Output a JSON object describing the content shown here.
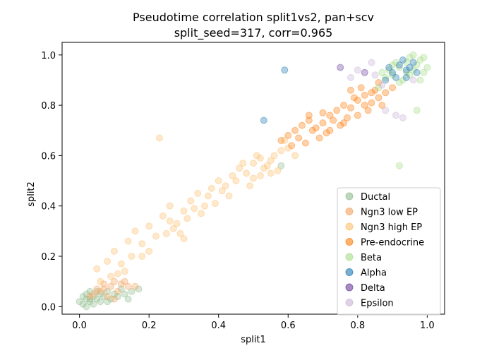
{
  "chart_data": {
    "type": "scatter",
    "title_line1": "Pseudotime correlation split1vs2, pan+scv",
    "title_line2": "split_seed=317, corr=0.965",
    "xlabel": "split1",
    "ylabel": "split2",
    "xlim": [
      -0.05,
      1.05
    ],
    "ylim": [
      -0.03,
      1.05
    ],
    "xticks": [
      0.0,
      0.2,
      0.4,
      0.6,
      0.8,
      1.0
    ],
    "yticks": [
      0.0,
      0.2,
      0.4,
      0.6,
      0.8,
      1.0
    ],
    "xtick_labels": [
      "0.0",
      "0.2",
      "0.4",
      "0.6",
      "0.8",
      "1.0"
    ],
    "ytick_labels": [
      "0.0",
      "0.2",
      "0.4",
      "0.6",
      "0.8",
      "1.0"
    ],
    "grid": false,
    "legend_position": "lower right",
    "series": [
      {
        "name": "Ductal",
        "color": "#8fbc8f",
        "points": [
          [
            0.01,
            0.01
          ],
          [
            0.02,
            0.03
          ],
          [
            0.03,
            0.02
          ],
          [
            0.04,
            0.04
          ],
          [
            0.05,
            0.03
          ],
          [
            0.06,
            0.05
          ],
          [
            0.02,
            0.05
          ],
          [
            0.03,
            0.06
          ],
          [
            0.07,
            0.04
          ],
          [
            0.08,
            0.06
          ],
          [
            0.1,
            0.05
          ],
          [
            0.12,
            0.07
          ],
          [
            0.04,
            0.01
          ],
          [
            0.0,
            0.02
          ],
          [
            0.01,
            0.04
          ],
          [
            0.05,
            0.06
          ],
          [
            0.09,
            0.03
          ],
          [
            0.11,
            0.04
          ],
          [
            0.06,
            0.02
          ],
          [
            0.13,
            0.05
          ],
          [
            0.15,
            0.06
          ],
          [
            0.17,
            0.07
          ],
          [
            0.02,
            0.0
          ],
          [
            0.03,
            0.03
          ],
          [
            0.08,
            0.02
          ],
          [
            0.14,
            0.03
          ],
          [
            0.58,
            0.56
          ]
        ]
      },
      {
        "name": "Ngn3 low EP",
        "color": "#f4a261",
        "points": [
          [
            0.05,
            0.07
          ],
          [
            0.07,
            0.09
          ],
          [
            0.09,
            0.08
          ],
          [
            0.1,
            0.1
          ],
          [
            0.06,
            0.06
          ],
          [
            0.12,
            0.09
          ],
          [
            0.14,
            0.08
          ],
          [
            0.08,
            0.04
          ],
          [
            0.11,
            0.06
          ],
          [
            0.04,
            0.05
          ],
          [
            0.13,
            0.1
          ],
          [
            0.1,
            0.03
          ],
          [
            0.16,
            0.08
          ],
          [
            0.07,
            0.07
          ],
          [
            0.03,
            0.04
          ]
        ]
      },
      {
        "name": "Ngn3 high EP",
        "color": "#fdbf6f",
        "points": [
          [
            0.05,
            0.15
          ],
          [
            0.08,
            0.18
          ],
          [
            0.1,
            0.22
          ],
          [
            0.12,
            0.17
          ],
          [
            0.14,
            0.26
          ],
          [
            0.16,
            0.3
          ],
          [
            0.18,
            0.25
          ],
          [
            0.2,
            0.32
          ],
          [
            0.22,
            0.28
          ],
          [
            0.24,
            0.36
          ],
          [
            0.26,
            0.4
          ],
          [
            0.28,
            0.33
          ],
          [
            0.3,
            0.38
          ],
          [
            0.32,
            0.42
          ],
          [
            0.34,
            0.45
          ],
          [
            0.36,
            0.4
          ],
          [
            0.38,
            0.47
          ],
          [
            0.4,
            0.5
          ],
          [
            0.42,
            0.48
          ],
          [
            0.44,
            0.52
          ],
          [
            0.46,
            0.55
          ],
          [
            0.48,
            0.53
          ],
          [
            0.5,
            0.57
          ],
          [
            0.52,
            0.59
          ],
          [
            0.54,
            0.56
          ],
          [
            0.56,
            0.6
          ],
          [
            0.58,
            0.62
          ],
          [
            0.5,
            0.51
          ],
          [
            0.53,
            0.55
          ],
          [
            0.55,
            0.58
          ],
          [
            0.57,
            0.54
          ],
          [
            0.45,
            0.5
          ],
          [
            0.47,
            0.57
          ],
          [
            0.49,
            0.48
          ],
          [
            0.51,
            0.6
          ],
          [
            0.43,
            0.44
          ],
          [
            0.41,
            0.46
          ],
          [
            0.39,
            0.41
          ],
          [
            0.37,
            0.44
          ],
          [
            0.35,
            0.37
          ],
          [
            0.33,
            0.39
          ],
          [
            0.31,
            0.35
          ],
          [
            0.29,
            0.29
          ],
          [
            0.27,
            0.31
          ],
          [
            0.25,
            0.29
          ],
          [
            0.23,
            0.67
          ],
          [
            0.2,
            0.22
          ],
          [
            0.18,
            0.2
          ],
          [
            0.15,
            0.2
          ],
          [
            0.13,
            0.14
          ],
          [
            0.11,
            0.13
          ],
          [
            0.09,
            0.12
          ],
          [
            0.06,
            0.1
          ],
          [
            0.3,
            0.27
          ],
          [
            0.26,
            0.34
          ],
          [
            0.6,
            0.63
          ],
          [
            0.62,
            0.6
          ],
          [
            0.59,
            0.66
          ],
          [
            0.55,
            0.53
          ],
          [
            0.52,
            0.52
          ]
        ]
      },
      {
        "name": "Pre-endocrine",
        "color": "#ff7f0e",
        "points": [
          [
            0.6,
            0.68
          ],
          [
            0.62,
            0.7
          ],
          [
            0.64,
            0.72
          ],
          [
            0.66,
            0.74
          ],
          [
            0.68,
            0.71
          ],
          [
            0.7,
            0.73
          ],
          [
            0.72,
            0.76
          ],
          [
            0.74,
            0.78
          ],
          [
            0.76,
            0.8
          ],
          [
            0.78,
            0.79
          ],
          [
            0.8,
            0.82
          ],
          [
            0.82,
            0.84
          ],
          [
            0.84,
            0.81
          ],
          [
            0.86,
            0.83
          ],
          [
            0.88,
            0.85
          ],
          [
            0.81,
            0.87
          ],
          [
            0.79,
            0.83
          ],
          [
            0.77,
            0.75
          ],
          [
            0.75,
            0.72
          ],
          [
            0.73,
            0.74
          ],
          [
            0.71,
            0.69
          ],
          [
            0.69,
            0.67
          ],
          [
            0.67,
            0.7
          ],
          [
            0.65,
            0.65
          ],
          [
            0.63,
            0.67
          ],
          [
            0.61,
            0.64
          ],
          [
            0.83,
            0.78
          ],
          [
            0.85,
            0.86
          ],
          [
            0.87,
            0.8
          ],
          [
            0.9,
            0.87
          ],
          [
            0.8,
            0.76
          ],
          [
            0.82,
            0.8
          ],
          [
            0.84,
            0.85
          ],
          [
            0.66,
            0.76
          ],
          [
            0.7,
            0.77
          ],
          [
            0.58,
            0.66
          ],
          [
            0.72,
            0.7
          ],
          [
            0.76,
            0.73
          ],
          [
            0.78,
            0.86
          ],
          [
            0.86,
            0.89
          ]
        ]
      },
      {
        "name": "Beta",
        "color": "#a6dc88",
        "points": [
          [
            0.9,
            0.92
          ],
          [
            0.92,
            0.95
          ],
          [
            0.94,
            0.97
          ],
          [
            0.96,
            0.94
          ],
          [
            0.98,
            0.98
          ],
          [
            0.95,
            0.99
          ],
          [
            0.97,
            0.96
          ],
          [
            0.99,
            0.93
          ],
          [
            0.93,
            0.9
          ],
          [
            0.91,
            0.97
          ],
          [
            0.89,
            0.94
          ],
          [
            0.88,
            0.91
          ],
          [
            1.0,
            0.95
          ],
          [
            0.96,
            1.0
          ],
          [
            0.94,
            0.93
          ],
          [
            0.92,
            0.89
          ],
          [
            0.9,
            0.96
          ],
          [
            0.87,
            0.93
          ],
          [
            0.95,
            0.92
          ],
          [
            0.98,
            0.9
          ],
          [
            0.97,
            0.78
          ],
          [
            0.92,
            0.56
          ],
          [
            0.86,
            0.87
          ],
          [
            0.99,
            0.99
          ]
        ]
      },
      {
        "name": "Alpha",
        "color": "#1f77b4",
        "points": [
          [
            0.9,
            0.93
          ],
          [
            0.92,
            0.96
          ],
          [
            0.94,
            0.94
          ],
          [
            0.96,
            0.97
          ],
          [
            0.93,
            0.98
          ],
          [
            0.95,
            0.95
          ],
          [
            0.91,
            0.91
          ],
          [
            0.97,
            0.93
          ],
          [
            0.89,
            0.95
          ],
          [
            0.88,
            0.9
          ],
          [
            0.59,
            0.94
          ],
          [
            0.53,
            0.74
          ],
          [
            0.94,
            0.91
          ]
        ]
      },
      {
        "name": "Delta",
        "color": "#6a3d9a",
        "points": [
          [
            0.75,
            0.95
          ],
          [
            0.82,
            0.93
          ]
        ]
      },
      {
        "name": "Epsilon",
        "color": "#cab2d6",
        "points": [
          [
            0.8,
            0.94
          ],
          [
            0.85,
            0.92
          ],
          [
            0.87,
            0.88
          ],
          [
            0.88,
            0.78
          ],
          [
            0.91,
            0.76
          ],
          [
            0.93,
            0.75
          ],
          [
            0.96,
            0.9
          ],
          [
            0.84,
            0.97
          ],
          [
            0.78,
            0.91
          ]
        ]
      }
    ]
  }
}
